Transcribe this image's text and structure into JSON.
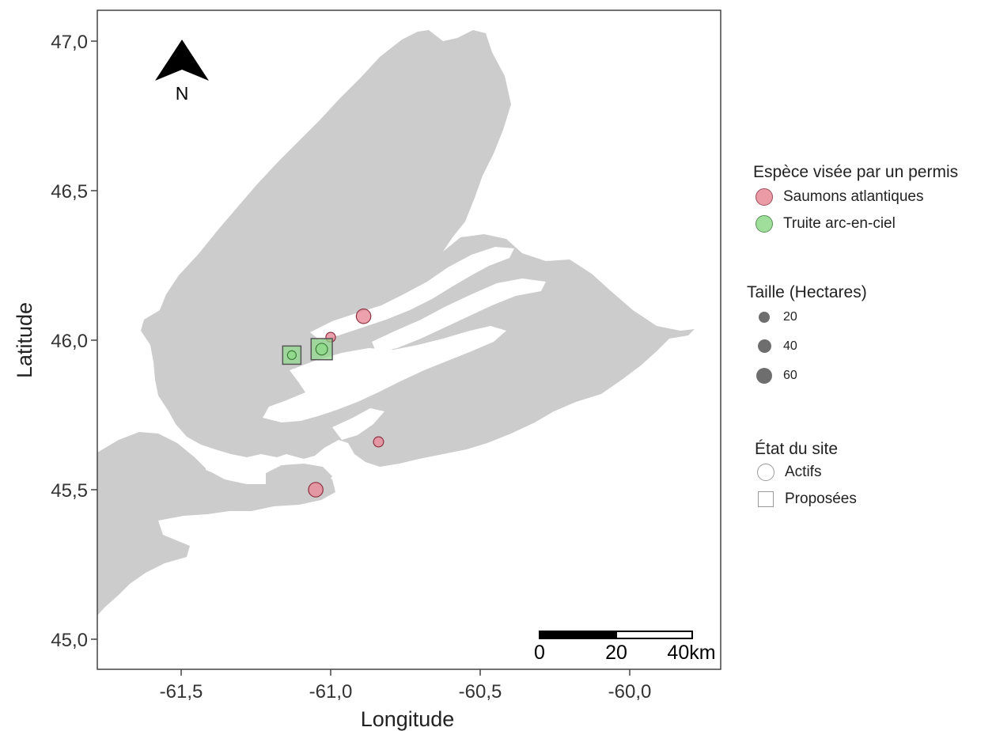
{
  "axes": {
    "xlabel": "Longitude",
    "ylabel": "Latitude",
    "x_ticks": [
      {
        "value": -61.5,
        "label": "-61,5"
      },
      {
        "value": -61.0,
        "label": "-61,0"
      },
      {
        "value": -60.5,
        "label": "-60,5"
      },
      {
        "value": -60.0,
        "label": "-60,0"
      }
    ],
    "y_ticks": [
      {
        "value": 47.0,
        "label": "47,0"
      },
      {
        "value": 46.5,
        "label": "46,5"
      },
      {
        "value": 46.0,
        "label": "46,0"
      },
      {
        "value": 45.5,
        "label": "45,5"
      },
      {
        "value": 45.0,
        "label": "45,0"
      }
    ],
    "xlim": [
      -61.7,
      -59.6
    ],
    "ylim": [
      44.9,
      47.1
    ]
  },
  "north_arrow": {
    "label": "N"
  },
  "scale_bar": {
    "labels": [
      "0",
      "20",
      "40km"
    ]
  },
  "colors": {
    "land": "#cccccc",
    "salmon": "#e88a97",
    "salmon_stroke": "#8c3040",
    "trout": "#8fd98a",
    "trout_stroke": "#3c7d38",
    "panel_border": "#444444"
  },
  "legend": {
    "species": {
      "title": "Espèce visée par un permis",
      "items": [
        "Saumons atlantiques",
        "Truite arc-en-ciel"
      ]
    },
    "size": {
      "title": "Taille (Hectares)",
      "items": [
        "20",
        "40",
        "60"
      ]
    },
    "state": {
      "title": "État du site",
      "items": [
        "Actifs",
        "Proposées"
      ]
    }
  },
  "chart_data": {
    "type": "scatter",
    "sites": [
      {
        "lon": -60.89,
        "lat": 46.08,
        "species": "Saumons atlantiques",
        "state": "Actifs",
        "hectares": 60
      },
      {
        "lon": -61.0,
        "lat": 46.01,
        "species": "Saumons atlantiques",
        "state": "Actifs",
        "hectares": 15
      },
      {
        "lon": -60.84,
        "lat": 45.66,
        "species": "Saumons atlantiques",
        "state": "Actifs",
        "hectares": 18
      },
      {
        "lon": -61.05,
        "lat": 45.5,
        "species": "Saumons atlantiques",
        "state": "Actifs",
        "hectares": 60
      },
      {
        "lon": -61.13,
        "lat": 45.95,
        "species": "Truite arc-en-ciel",
        "state": "Proposées",
        "hectares": 10
      },
      {
        "lon": -61.03,
        "lat": 45.97,
        "species": "Truite arc-en-ciel",
        "state": "Proposées",
        "hectares": 30
      }
    ]
  }
}
